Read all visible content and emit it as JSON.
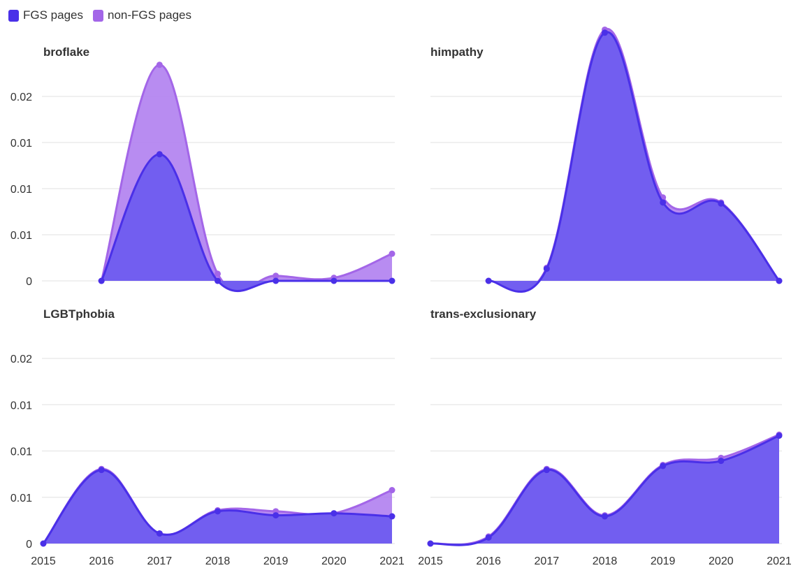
{
  "legend": [
    {
      "label": "FGS pages",
      "color": "#4a30e8"
    },
    {
      "label": "non-FGS pages",
      "color": "#a366e8"
    }
  ],
  "chart_data": [
    {
      "type": "area",
      "title": "broflake",
      "ylim": [
        0,
        0.021
      ],
      "y_tick_labels": [
        "0",
        "0.01",
        "0.01",
        "0.01",
        "0.02"
      ],
      "x": [
        2016,
        2017,
        2018,
        2019,
        2020,
        2021
      ],
      "series": [
        {
          "name": "FGS pages",
          "values": [
            0,
            0.0126,
            0,
            0,
            0,
            0
          ]
        },
        {
          "name": "non-FGS pages",
          "values": [
            0,
            0.0215,
            0.0007,
            0.0005,
            0.0003,
            0.0027
          ]
        }
      ]
    },
    {
      "type": "area",
      "title": "himpathy",
      "ylim": [
        0,
        0.021
      ],
      "y_tick_labels": [],
      "x": [
        2016,
        2017,
        2018,
        2019,
        2020,
        2021
      ],
      "series": [
        {
          "name": "FGS pages",
          "values": [
            0,
            0.0012,
            0.0247,
            0.0078,
            0.0077,
            0
          ]
        },
        {
          "name": "non-FGS pages",
          "values": [
            0,
            0.0013,
            0.025,
            0.0083,
            0.0078,
            0
          ]
        }
      ]
    },
    {
      "type": "area",
      "title": "LGBTphobia",
      "ylim": [
        0,
        0.021
      ],
      "y_tick_labels": [
        "0",
        "0.01",
        "0.01",
        "0.01",
        "0.02"
      ],
      "x": [
        2015,
        2016,
        2017,
        2018,
        2019,
        2020,
        2021
      ],
      "series": [
        {
          "name": "FGS pages",
          "values": [
            0,
            0.0073,
            0.001,
            0.0032,
            0.0028,
            0.003,
            0.0027
          ]
        },
        {
          "name": "non-FGS pages",
          "values": [
            0,
            0.0074,
            0.001,
            0.0033,
            0.0032,
            0.003,
            0.0053
          ]
        }
      ]
    },
    {
      "type": "area",
      "title": "trans-exclusionary",
      "ylim": [
        0,
        0.021
      ],
      "y_tick_labels": [],
      "x": [
        2015,
        2016,
        2017,
        2018,
        2019,
        2020,
        2021
      ],
      "series": [
        {
          "name": "FGS pages",
          "values": [
            0,
            0.0006,
            0.0073,
            0.0027,
            0.0077,
            0.0082,
            0.0107
          ]
        },
        {
          "name": "non-FGS pages",
          "values": [
            0,
            0.0007,
            0.0074,
            0.0028,
            0.0078,
            0.0085,
            0.0108
          ]
        }
      ]
    }
  ],
  "x_axis_labels": [
    "2015",
    "2016",
    "2017",
    "2018",
    "2019",
    "2020",
    "2021"
  ],
  "colors": {
    "fgs_line": "#4a30e8",
    "fgs_fill": "#6e5cef",
    "nonfgs_line": "#a366e8",
    "nonfgs_fill": "#b07ff0",
    "grid": "#e6e6e6"
  }
}
